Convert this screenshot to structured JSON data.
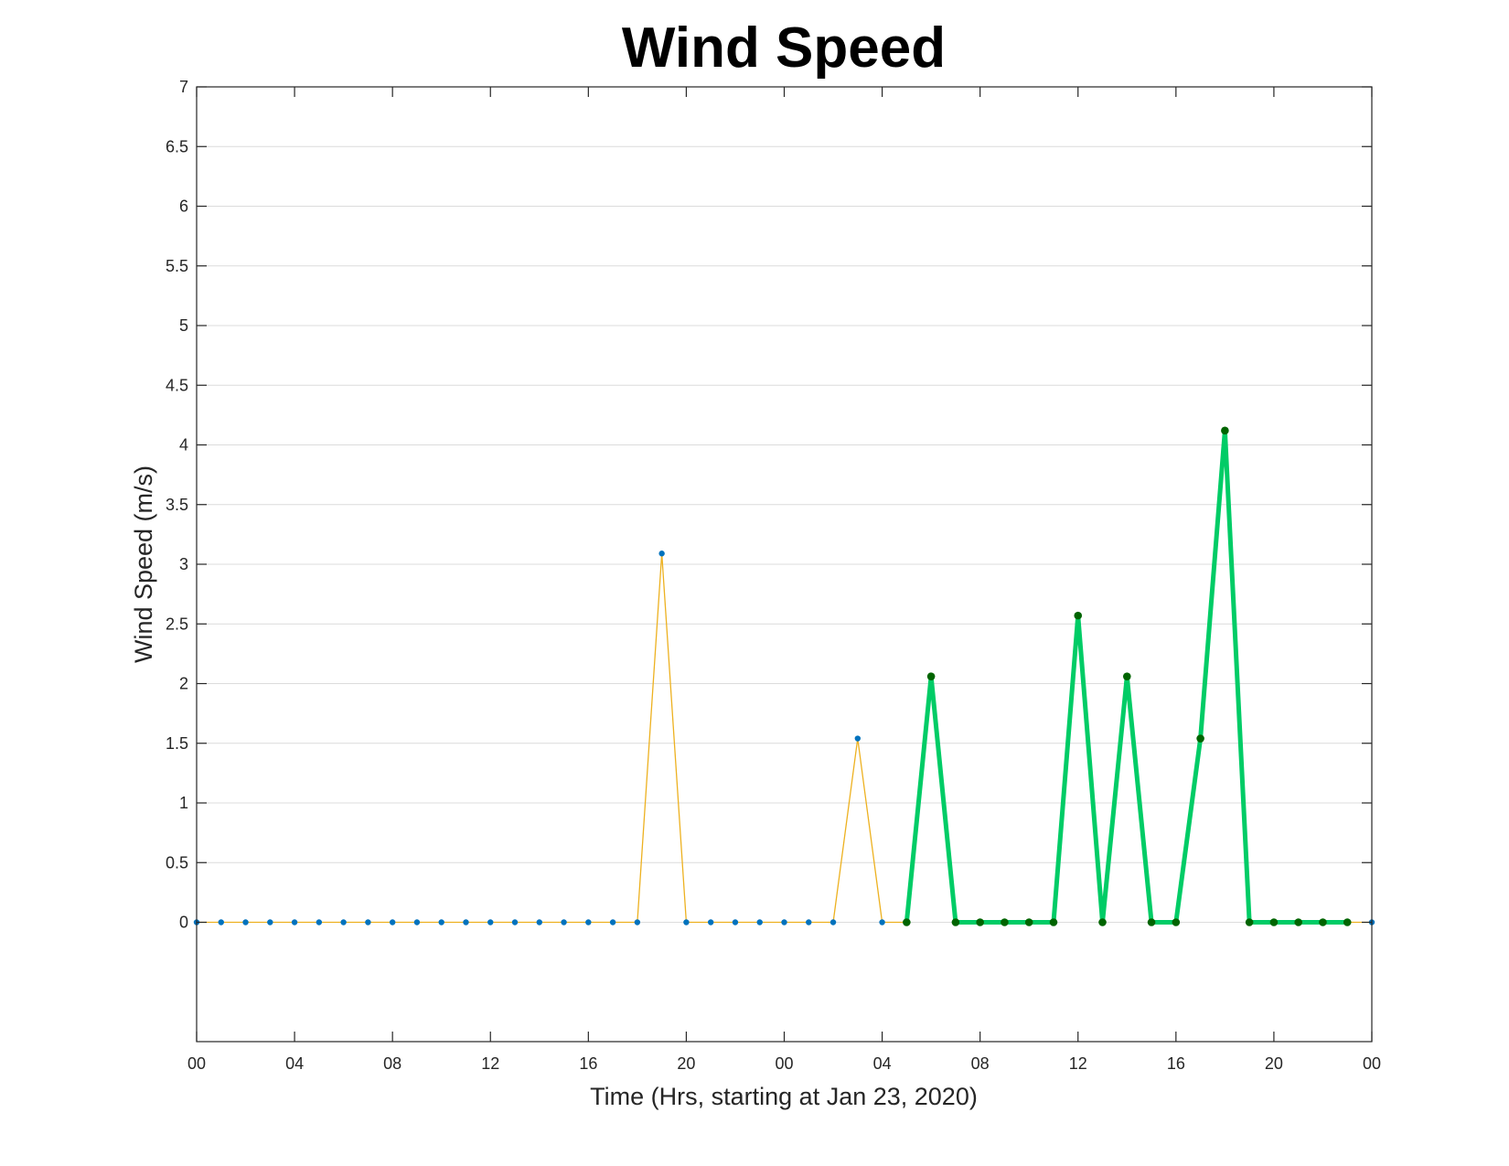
{
  "chart_data": {
    "type": "line",
    "title": "Wind Speed",
    "xlabel": "Time (Hrs, starting at Jan 23, 2020)",
    "ylabel": "Wind Speed (m/s)",
    "xlim": [
      0,
      48
    ],
    "ylim": [
      -1,
      7
    ],
    "grid": "y",
    "x_ticks": [
      {
        "hour": 0,
        "label": "00"
      },
      {
        "hour": 4,
        "label": "04"
      },
      {
        "hour": 8,
        "label": "08"
      },
      {
        "hour": 12,
        "label": "12"
      },
      {
        "hour": 16,
        "label": "16"
      },
      {
        "hour": 20,
        "label": "20"
      },
      {
        "hour": 24,
        "label": "00"
      },
      {
        "hour": 28,
        "label": "04"
      },
      {
        "hour": 32,
        "label": "08"
      },
      {
        "hour": 36,
        "label": "12"
      },
      {
        "hour": 40,
        "label": "16"
      },
      {
        "hour": 44,
        "label": "20"
      },
      {
        "hour": 48,
        "label": "00"
      }
    ],
    "y_ticks": [
      {
        "value": 0,
        "label": "0"
      },
      {
        "value": 0.5,
        "label": "0.5"
      },
      {
        "value": 1,
        "label": "1"
      },
      {
        "value": 1.5,
        "label": "1.5"
      },
      {
        "value": 2,
        "label": "2"
      },
      {
        "value": 2.5,
        "label": "2.5"
      },
      {
        "value": 3,
        "label": "3"
      },
      {
        "value": 3.5,
        "label": "3.5"
      },
      {
        "value": 4,
        "label": "4"
      },
      {
        "value": 4.5,
        "label": "4.5"
      },
      {
        "value": 5,
        "label": "5"
      },
      {
        "value": 5.5,
        "label": "5.5"
      },
      {
        "value": 6,
        "label": "6"
      },
      {
        "value": 6.5,
        "label": "6.5"
      },
      {
        "value": 7,
        "label": "7"
      }
    ],
    "series": [
      {
        "line_color": "#EDB120",
        "marker_color": "#0072BD",
        "x": [
          0,
          1,
          2,
          3,
          4,
          5,
          6,
          7,
          8,
          9,
          10,
          11,
          12,
          13,
          14,
          15,
          16,
          17,
          18,
          19,
          20,
          21,
          22,
          23,
          24,
          25,
          26,
          27,
          28,
          29,
          30,
          31,
          32,
          33,
          34,
          35,
          36,
          37,
          38,
          39,
          40,
          41,
          42,
          43,
          44,
          45,
          46,
          47,
          48
        ],
        "y": [
          0,
          0,
          0,
          0,
          0,
          0,
          0,
          0,
          0,
          0,
          0,
          0,
          0,
          0,
          0,
          0,
          0,
          0,
          0,
          3.09,
          0,
          0,
          0,
          0,
          0,
          0,
          0,
          1.54,
          0,
          0,
          2.06,
          0,
          0,
          0,
          0,
          0,
          2.57,
          0,
          2.06,
          0,
          0,
          1.54,
          4.12,
          0,
          0,
          0,
          0,
          0,
          0
        ]
      },
      {
        "line_color": "#00CC66",
        "marker_color": "#006400",
        "x": [
          29,
          30,
          31,
          32,
          33,
          34,
          35,
          36,
          37,
          38,
          39,
          40,
          41,
          42,
          43,
          44,
          45,
          46,
          47
        ],
        "y": [
          0,
          2.06,
          0,
          0,
          0,
          0,
          0,
          2.57,
          0,
          2.06,
          0,
          0,
          1.54,
          4.12,
          0,
          0,
          0,
          0,
          0
        ]
      }
    ]
  }
}
